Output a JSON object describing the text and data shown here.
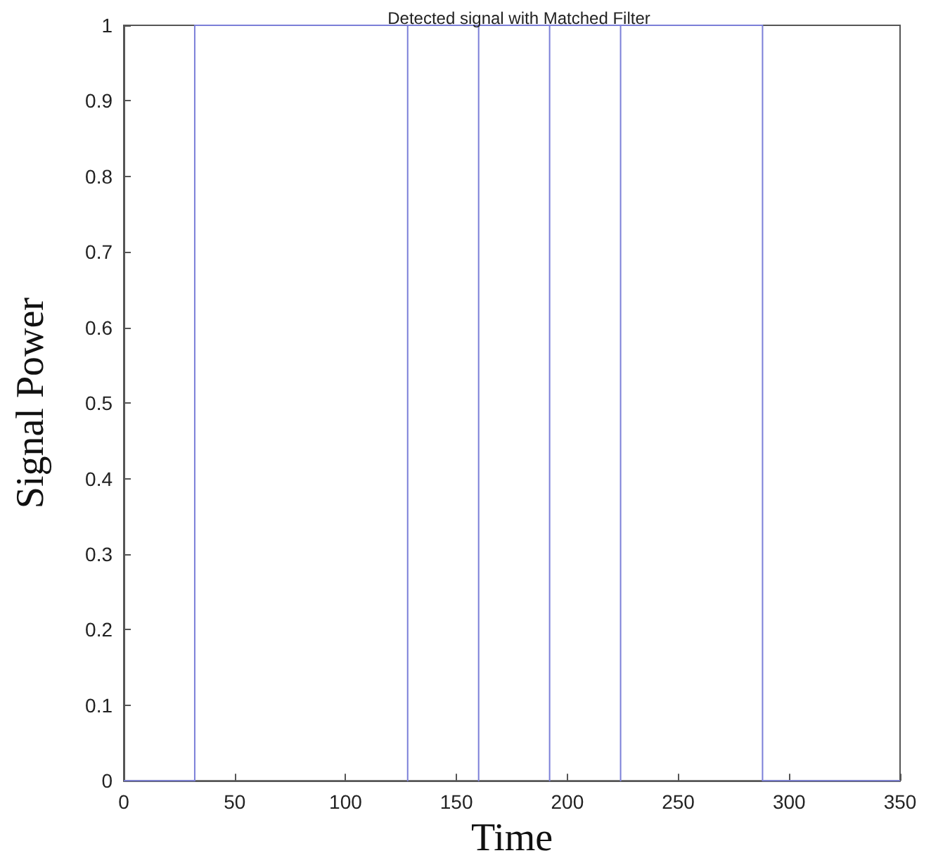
{
  "chart_data": {
    "type": "line",
    "title": "Detected signal with Matched Filter",
    "xlabel": "Time",
    "ylabel": "Signal Power",
    "series": [
      {
        "color": "#7b7fd8",
        "x": [
          0,
          32,
          32,
          128,
          128,
          128,
          160,
          160,
          160,
          192,
          192,
          192,
          224,
          224,
          224,
          288,
          288,
          350
        ],
        "values": [
          0,
          0,
          1,
          1,
          0,
          1,
          1,
          0,
          1,
          1,
          0,
          1,
          1,
          0,
          1,
          1,
          0,
          0
        ]
      }
    ],
    "xlim": [
      0,
      350
    ],
    "xticks": [
      0,
      50,
      100,
      150,
      200,
      250,
      300,
      350
    ],
    "ylim": [
      0,
      1
    ],
    "yticks": [
      0,
      0.1,
      0.2,
      0.3,
      0.4,
      0.5,
      0.6,
      0.7,
      0.8,
      0.9,
      1
    ],
    "grid": false,
    "marker": "none",
    "line_style": "solid"
  }
}
